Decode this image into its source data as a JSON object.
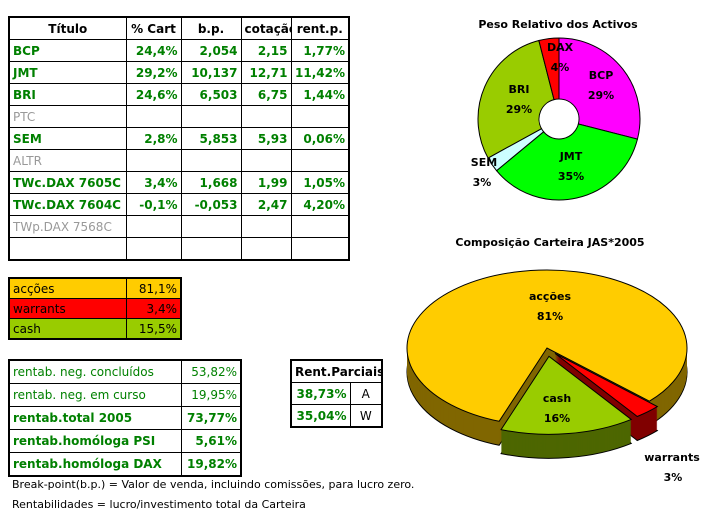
{
  "holdings": {
    "headers": [
      "Título",
      "% Cart",
      "b.p.",
      "cotação",
      "rent.p."
    ],
    "rows": [
      {
        "titulo": "BCP",
        "cart": "24,4%",
        "bp": "2,054",
        "cotacao": "2,15",
        "rent": "1,77%",
        "active": true
      },
      {
        "titulo": "JMT",
        "cart": "29,2%",
        "bp": "10,137",
        "cotacao": "12,71",
        "rent": "11,42%",
        "active": true
      },
      {
        "titulo": "BRI",
        "cart": "24,6%",
        "bp": "6,503",
        "cotacao": "6,75",
        "rent": "1,44%",
        "active": true
      },
      {
        "titulo": "PTC",
        "cart": "",
        "bp": "",
        "cotacao": "",
        "rent": "",
        "active": false
      },
      {
        "titulo": "SEM",
        "cart": "2,8%",
        "bp": "5,853",
        "cotacao": "5,93",
        "rent": "0,06%",
        "active": true
      },
      {
        "titulo": "ALTR",
        "cart": "",
        "bp": "",
        "cotacao": "",
        "rent": "",
        "active": false
      },
      {
        "titulo": "TWc.DAX 7605C",
        "cart": "3,4%",
        "bp": "1,668",
        "cotacao": "1,99",
        "rent": "1,05%",
        "active": true
      },
      {
        "titulo": "TWc.DAX 7604C",
        "cart": "-0,1%",
        "bp": "-0,053",
        "cotacao": "2,47",
        "rent": "4,20%",
        "active": true
      },
      {
        "titulo": "TWp.DAX 7568C",
        "cart": "",
        "bp": "",
        "cotacao": "",
        "rent": "",
        "active": false
      },
      {
        "titulo": "",
        "cart": "",
        "bp": "",
        "cotacao": "",
        "rent": "",
        "active": false
      }
    ]
  },
  "allocation": [
    {
      "label": "acções",
      "value": "81,1%",
      "color": "#ffcc00"
    },
    {
      "label": "warrants",
      "value": "3,4%",
      "color": "#ff0000"
    },
    {
      "label": "cash",
      "value": "15,5%",
      "color": "#99cc00"
    }
  ],
  "returns": [
    {
      "label": "rentab. neg. concluídos",
      "value": "53,82%",
      "bold": false
    },
    {
      "label": "rentab. neg. em curso",
      "value": "19,95%",
      "bold": false
    },
    {
      "label": "rentab.total 2005",
      "value": "73,77%",
      "bold": true
    },
    {
      "label": "rentab.homóloga PSI",
      "value": "5,61%",
      "bold": true
    },
    {
      "label": "rentab.homóloga DAX",
      "value": "19,82%",
      "bold": true
    }
  ],
  "partial": {
    "title": "Rent.Parciais",
    "rows": [
      {
        "value": "38,73%",
        "key": "A"
      },
      {
        "value": "35,04%",
        "key": "W"
      }
    ]
  },
  "notes": [
    "Break-point(b.p.) = Valor de venda, incluindo comissões, para lucro zero.",
    "Rentabilidades = lucro/investimento total da Carteira"
  ],
  "chart_data": [
    {
      "type": "pie",
      "title": "Peso Relativo dos Activos",
      "style": "doughnut",
      "slices": [
        {
          "label": "BCP",
          "value": 29,
          "display": "29%",
          "color": "#ff00ff"
        },
        {
          "label": "JMT",
          "value": 35,
          "display": "35%",
          "color": "#00ff00"
        },
        {
          "label": "SEM",
          "value": 3,
          "display": "3%",
          "color": "#ccffff"
        },
        {
          "label": "BRI",
          "value": 29,
          "display": "29%",
          "color": "#99cc00"
        },
        {
          "label": "DAX",
          "value": 4,
          "display": "4%",
          "color": "#ff0000"
        }
      ]
    },
    {
      "type": "pie",
      "title": "Composição Carteira JAS*2005",
      "style": "3d-exploded",
      "slices": [
        {
          "label": "acções",
          "value": 81,
          "display": "81%",
          "color": "#ffcc00",
          "side": "#806600"
        },
        {
          "label": "warrants",
          "value": 3,
          "display": "3%",
          "color": "#ff0000",
          "side": "#800000"
        },
        {
          "label": "cash",
          "value": 16,
          "display": "16%",
          "color": "#99cc00",
          "side": "#4d6600"
        }
      ]
    }
  ]
}
